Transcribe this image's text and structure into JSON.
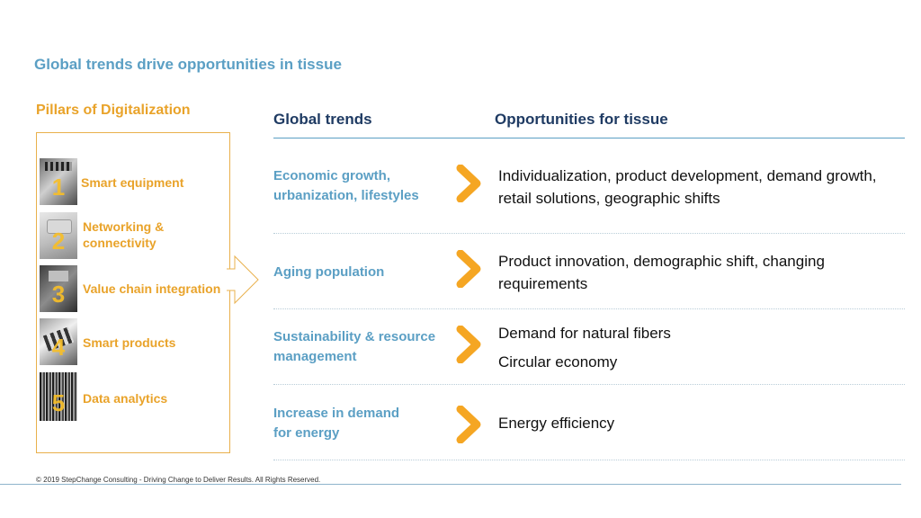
{
  "slide": {
    "title": "Global trends drive opportunities in tissue"
  },
  "pillars": {
    "title": "Pillars of Digitalization",
    "items": [
      {
        "number": "1",
        "label": "Smart equipment"
      },
      {
        "number": "2",
        "label": "Networking & connectivity"
      },
      {
        "number": "3",
        "label": "Value chain integration"
      },
      {
        "number": "4",
        "label": "Smart products"
      },
      {
        "number": "5",
        "label": "Data analytics"
      }
    ]
  },
  "columns": {
    "trends_header": "Global trends",
    "opportunities_header": "Opportunities for tissue"
  },
  "rows": [
    {
      "trend": "Economic growth, urbanization, lifestyles",
      "opportunities": [
        "Individualization, product development, demand growth, retail solutions, geographic shifts"
      ]
    },
    {
      "trend": "Aging population",
      "opportunities": [
        "Product innovation, demographic shift, changing requirements"
      ]
    },
    {
      "trend": "Sustainability & resource management",
      "opportunities": [
        "Demand for natural fibers",
        "Circular economy"
      ]
    },
    {
      "trend": "Increase in demand for energy",
      "opportunities": [
        "Energy efficiency"
      ]
    }
  ],
  "footer": {
    "text": "© 2019 StepChange Consulting - Driving Change to Deliver Results. All Rights Reserved."
  },
  "colors": {
    "title_blue": "#5b9fc4",
    "header_navy": "#1f3b63",
    "accent_orange": "#f5a623",
    "pillar_orange": "#e9a32a"
  }
}
